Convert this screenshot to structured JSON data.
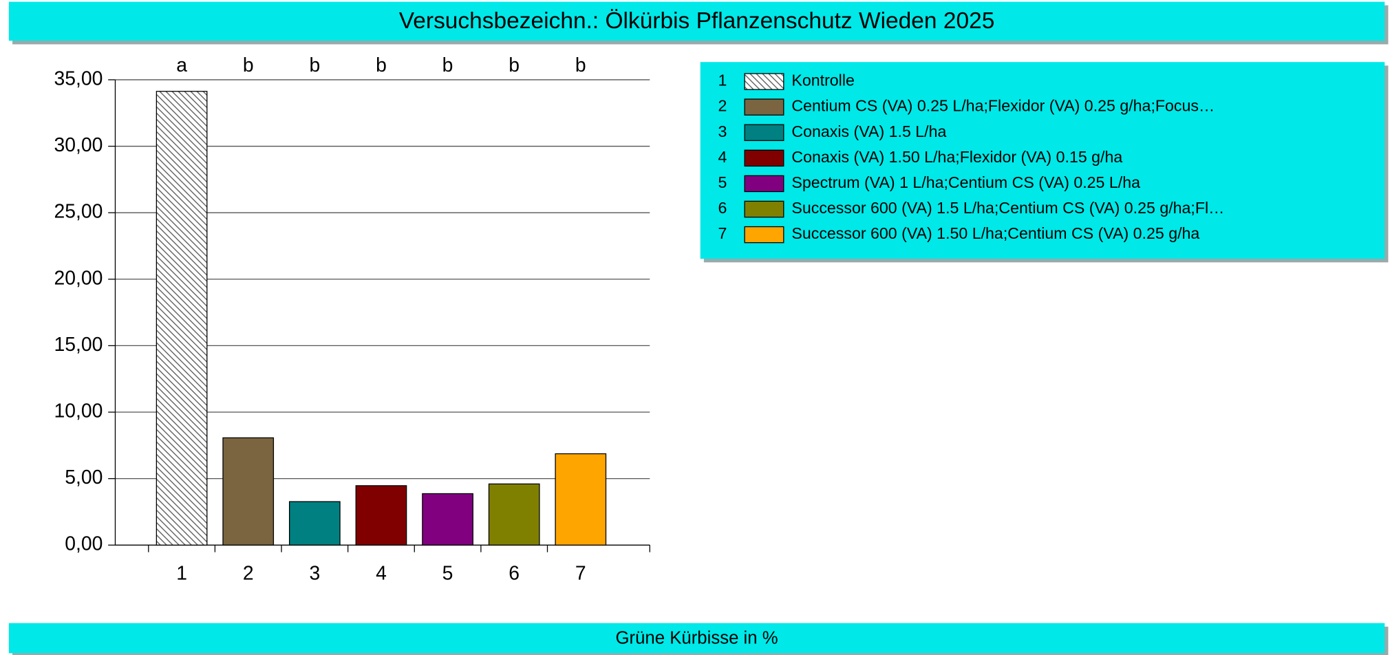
{
  "chart_data": {
    "type": "bar",
    "title": "Versuchsbezeichn.: Ölkürbis Pflanzenschutz Wieden 2025",
    "y_label": "Grüne Kürbisse in %",
    "categories": [
      "1",
      "2",
      "3",
      "4",
      "5",
      "6",
      "7"
    ],
    "values": [
      34.13,
      8.07,
      3.27,
      4.47,
      3.87,
      4.6,
      6.87
    ],
    "letters": [
      "a",
      "b",
      "b",
      "b",
      "b",
      "b",
      "b"
    ],
    "colors": [
      "#ffffff",
      "#7a6540",
      "#008080",
      "#800000",
      "#800080",
      "#808000",
      "#ffa500"
    ],
    "bar_styles": [
      "hatch",
      "solid",
      "solid",
      "solid",
      "solid",
      "solid",
      "solid"
    ],
    "legend": [
      "Kontrolle",
      "Centium CS (VA) 0.25 L/ha;Flexidor (VA) 0.25 g/ha;Focus…",
      "Conaxis (VA) 1.5 L/ha",
      "Conaxis (VA) 1.50 L/ha;Flexidor (VA) 0.15 g/ha",
      "Spectrum (VA) 1 L/ha;Centium CS (VA) 0.25 L/ha",
      "Successor 600 (VA) 1.5 L/ha;Centium CS (VA) 0.25 g/ha;Fl…",
      "Successor 600 (VA) 1.50 L/ha;Centium CS (VA) 0.25 g/ha"
    ],
    "ylim": [
      0,
      35
    ],
    "yticks": [
      {
        "value": 0,
        "label": "0,00"
      },
      {
        "value": 5,
        "label": "5,00"
      },
      {
        "value": 10,
        "label": "10,00"
      },
      {
        "value": 15,
        "label": "15,00"
      },
      {
        "value": 20,
        "label": "20,00"
      },
      {
        "value": 25,
        "label": "25,00"
      },
      {
        "value": 30,
        "label": "30,00"
      },
      {
        "value": 35,
        "label": "35,00"
      }
    ],
    "grid": true
  }
}
